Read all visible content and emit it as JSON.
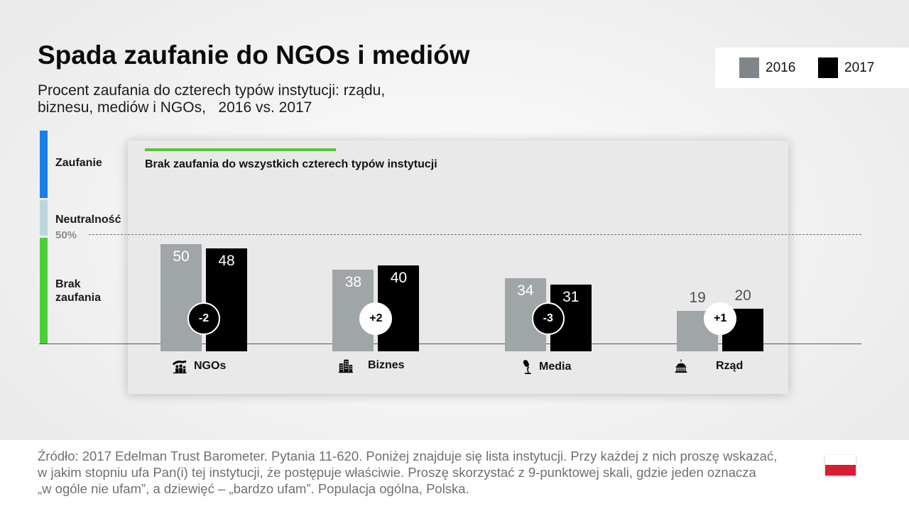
{
  "chart_data": {
    "type": "bar",
    "title": "Spada zaufanie do NGOs i mediów",
    "subtitle": [
      "Procent zaufania do czterech typów instytucji: rządu,",
      "biznesu, mediów i NGOs,   2016 vs. 2017"
    ],
    "panel_heading": "Brak zaufania do wszystkich czterech typów instytucji",
    "categories": [
      "NGOs",
      "Biznes",
      "Media",
      "Rząd"
    ],
    "category_icons": [
      "ngo-icon",
      "business-icon",
      "media-icon",
      "government-icon"
    ],
    "series": [
      {
        "name": "2016",
        "color": "#a0a5a7",
        "swatch_color": "#7f8689",
        "values": [
          50,
          38,
          34,
          19
        ]
      },
      {
        "name": "2017",
        "color": "#000000",
        "swatch_color": "#000000",
        "values": [
          48,
          40,
          31,
          20
        ]
      }
    ],
    "changes": [
      "-2",
      "+2",
      "-3",
      "+1"
    ],
    "reference_line": {
      "value": 50,
      "label": "50%"
    },
    "grid": false,
    "legend_position": "top-right",
    "accent_color": "#55c43c"
  },
  "trust_scale": [
    {
      "label": "Zaufanie",
      "color": "#1b7fe8"
    },
    {
      "label": "Neutralność",
      "color": "#bcd6de"
    },
    {
      "label": "Brak zaufania",
      "color": "#4dcd3a"
    }
  ],
  "footer": {
    "source_lines": [
      "Źródło: 2017 Edelman Trust Barometer. Pytania 11-620. Poniżej znajduje się lista instytucji. Przy każdej z nich proszę wskazać,",
      "w jakim stopniu ufa Pan(i) tej instytucji, że postępuje właściwie. Proszę skorzystać z 9-punktowej skali, gdzie jeden oznacza",
      "„w ogóle nie ufam”, a dziewięć – „bardzo ufam”. Populacja ogólna, Polska."
    ],
    "flag_icon": "poland-flag-icon",
    "flag_colors": [
      "#ffffff",
      "#d81e34"
    ]
  }
}
